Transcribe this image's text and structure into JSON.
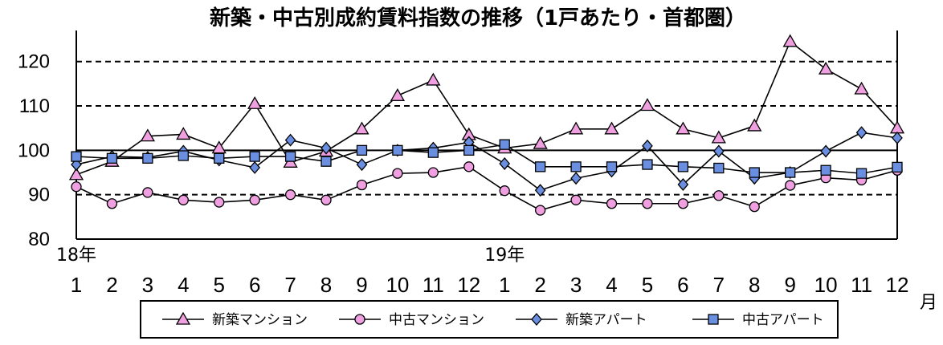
{
  "chart_data": {
    "type": "line",
    "title": "新築・中古別成約賃料指数の推移（1戸あたり・首都圏）",
    "xlabel": "月",
    "ylabel": "",
    "ylim": [
      80,
      127
    ],
    "yticks": [
      80,
      90,
      100,
      110,
      120
    ],
    "year_labels": [
      {
        "label": "18年",
        "month_index": 0
      },
      {
        "label": "19年",
        "month_index": 12
      }
    ],
    "categories": [
      "1",
      "2",
      "3",
      "4",
      "5",
      "6",
      "7",
      "8",
      "9",
      "10",
      "11",
      "12",
      "1",
      "2",
      "3",
      "4",
      "5",
      "6",
      "7",
      "8",
      "9",
      "10",
      "11",
      "12"
    ],
    "gridlines_dashed": [
      90,
      110,
      120
    ],
    "reference_line": 100,
    "legend_position": "bottom",
    "series": [
      {
        "name": "新築マンション",
        "marker": "triangle",
        "color": "#f0a0e0",
        "values": [
          94.5,
          97.5,
          103.2,
          103.6,
          100.5,
          110.5,
          97.3,
          99.8,
          104.8,
          112.3,
          115.8,
          103.5,
          100.5,
          101.5,
          104.8,
          104.8,
          110.1,
          104.8,
          102.8,
          105.5,
          124.5,
          118.3,
          113.8,
          105.0
        ]
      },
      {
        "name": "中古マンション",
        "marker": "circle",
        "color": "#f0a0e0",
        "values": [
          91.8,
          88.0,
          90.5,
          88.8,
          88.3,
          88.8,
          90.0,
          88.8,
          92.2,
          94.8,
          95.0,
          96.3,
          90.9,
          86.5,
          88.8,
          88.0,
          88.0,
          88.0,
          89.8,
          87.3,
          92.1,
          93.8,
          93.3,
          95.5
        ]
      },
      {
        "name": "新築アパート",
        "marker": "diamond",
        "color": "#6a8fe0",
        "values": [
          96.8,
          98.6,
          98.4,
          99.8,
          97.8,
          96.1,
          102.3,
          100.5,
          96.8,
          100.0,
          100.5,
          101.8,
          97.0,
          91.0,
          93.7,
          95.3,
          101.0,
          92.3,
          99.8,
          93.7,
          95.0,
          99.8,
          104.0,
          102.8
        ]
      },
      {
        "name": "中古アパート",
        "marker": "square",
        "color": "#6a8fe0",
        "values": [
          98.6,
          98.2,
          98.2,
          98.8,
          98.2,
          98.6,
          98.6,
          97.5,
          100.0,
          100.0,
          99.5,
          100.0,
          101.3,
          96.3,
          96.3,
          96.3,
          96.8,
          96.3,
          96.0,
          95.0,
          95.0,
          95.5,
          94.8,
          96.2
        ]
      }
    ]
  }
}
